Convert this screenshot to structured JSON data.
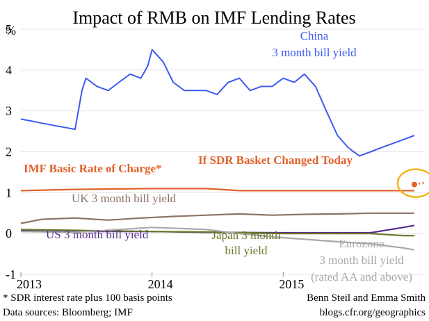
{
  "chart_data": {
    "type": "line",
    "title": "Impact of RMB on IMF Lending Rates",
    "yunit": "%",
    "ylim": [
      -1,
      5
    ],
    "yticks": [
      "5",
      "4",
      "3",
      "2",
      "1",
      "0",
      "-1"
    ],
    "xlim": [
      "2013-01-01",
      "2016-02-01"
    ],
    "xticks": [
      {
        "value": "2013-01-01",
        "label": "2013"
      },
      {
        "value": "2014-01-01",
        "label": "2014"
      },
      {
        "value": "2015-01-01",
        "label": "2015"
      }
    ],
    "grid": true,
    "colors": {
      "china": "#3d5af1",
      "imf": "#e2622b",
      "uk": "#8b7466",
      "us": "#5a2d91",
      "japan": "#6b7a2a",
      "eurozone": "#a8a8a8",
      "highlight": "#f5b51a"
    },
    "series": [
      {
        "key": "china",
        "x": [
          "2013-01-01",
          "2013-02-01",
          "2013-03-01",
          "2013-04-01",
          "2013-05-01",
          "2013-06-01",
          "2013-06-20",
          "2013-07-01",
          "2013-08-01",
          "2013-09-01",
          "2013-10-01",
          "2013-11-01",
          "2013-12-01",
          "2013-12-20",
          "2014-01-01",
          "2014-02-01",
          "2014-03-01",
          "2014-04-01",
          "2014-05-01",
          "2014-06-01",
          "2014-07-01",
          "2014-08-01",
          "2014-09-01",
          "2014-10-01",
          "2014-11-01",
          "2014-12-01",
          "2015-01-01",
          "2015-02-01",
          "2015-03-01",
          "2015-04-01",
          "2015-05-01",
          "2015-06-01",
          "2015-07-01",
          "2015-08-01",
          "2015-09-01",
          "2015-10-01",
          "2015-11-01",
          "2015-12-01",
          "2016-01-01"
        ],
        "y": [
          2.8,
          2.75,
          2.7,
          2.65,
          2.6,
          2.55,
          3.5,
          3.8,
          3.6,
          3.5,
          3.7,
          3.9,
          3.8,
          4.1,
          4.5,
          4.2,
          3.7,
          3.5,
          3.5,
          3.5,
          3.4,
          3.7,
          3.8,
          3.5,
          3.6,
          3.6,
          3.8,
          3.7,
          3.9,
          3.6,
          3.0,
          2.4,
          2.1,
          1.9,
          2.0,
          2.1,
          2.2,
          2.3,
          2.4
        ]
      },
      {
        "key": "imf",
        "x": [
          "2013-01-01",
          "2013-06-01",
          "2014-01-01",
          "2014-06-01",
          "2014-09-01",
          "2015-01-01",
          "2015-06-01",
          "2016-01-01"
        ],
        "y": [
          1.05,
          1.08,
          1.1,
          1.1,
          1.05,
          1.05,
          1.05,
          1.05
        ]
      },
      {
        "key": "uk",
        "x": [
          "2013-01-01",
          "2013-03-01",
          "2013-06-01",
          "2013-09-01",
          "2013-12-01",
          "2014-03-01",
          "2014-06-01",
          "2014-09-01",
          "2014-12-01",
          "2015-03-01",
          "2015-06-01",
          "2015-09-01",
          "2015-12-01",
          "2016-01-01"
        ],
        "y": [
          0.25,
          0.35,
          0.38,
          0.33,
          0.38,
          0.42,
          0.45,
          0.48,
          0.45,
          0.47,
          0.48,
          0.5,
          0.5,
          0.5
        ]
      },
      {
        "key": "us",
        "x": [
          "2013-01-01",
          "2013-06-01",
          "2014-01-01",
          "2014-06-01",
          "2015-01-01",
          "2015-06-01",
          "2015-09-01",
          "2015-12-01",
          "2016-01-01"
        ],
        "y": [
          0.08,
          0.05,
          0.05,
          0.03,
          0.02,
          0.02,
          0.02,
          0.15,
          0.2
        ]
      },
      {
        "key": "japan",
        "x": [
          "2013-01-01",
          "2013-06-01",
          "2014-01-01",
          "2014-06-01",
          "2015-01-01",
          "2015-06-01",
          "2015-09-01",
          "2015-12-01",
          "2016-01-01"
        ],
        "y": [
          0.1,
          0.08,
          0.05,
          0.04,
          0.0,
          0.0,
          0.0,
          -0.05,
          -0.05
        ]
      },
      {
        "key": "eurozone",
        "x": [
          "2013-01-01",
          "2013-06-01",
          "2014-01-01",
          "2014-06-01",
          "2014-09-01",
          "2015-01-01",
          "2015-06-01",
          "2015-09-01",
          "2015-12-01",
          "2016-01-01"
        ],
        "y": [
          0.05,
          0.03,
          0.15,
          0.1,
          0.0,
          -0.1,
          -0.2,
          -0.25,
          -0.35,
          -0.4
        ]
      }
    ],
    "projection": {
      "key": "imf",
      "x": [
        "2016-01-01",
        "2016-02-01"
      ],
      "y": [
        1.2,
        1.25
      ]
    },
    "annotations": {
      "china_line1": "China",
      "china_line2": "3 month bill yield",
      "imf_label": "IMF Basic Rate of Charge*",
      "sdr_label": "If SDR Basket Changed Today",
      "uk_label": "UK 3 month bill yield",
      "us_label": "US 3 month bill yield",
      "japan_line1": "Japan 3 month",
      "japan_line2": "bill yield",
      "euro_line1": "Eurozone",
      "euro_line2": "3 month bill yield",
      "euro_line3": "(rated AA and above)"
    }
  },
  "footer": {
    "note1": "* SDR interest rate plus 100 basis points",
    "note2": "Data sources: Bloomberg; IMF",
    "credit1": "Benn Steil and Emma Smith",
    "credit2": "blogs.cfr.org/geographics"
  }
}
